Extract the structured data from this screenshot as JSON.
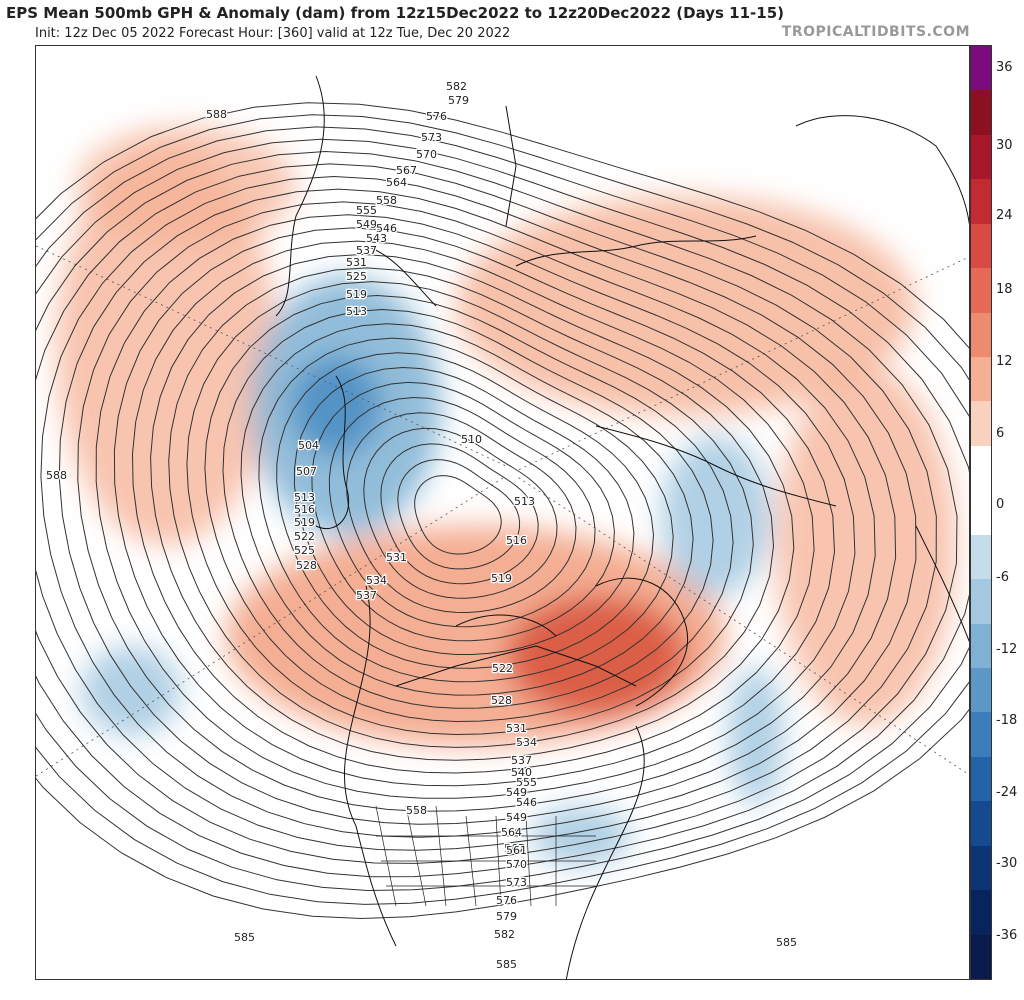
{
  "header": {
    "title": "EPS Mean 500mb GPH & Anomaly (dam) from 12z15Dec2022 to 12z20Dec2022 (Days 11-15)",
    "subtitle": "Init: 12z Dec 05 2022   Forecast Hour: [360]   valid at 12z Tue, Dec 20 2022",
    "brand": "TROPICALTIDBITS.COM"
  },
  "colorbar": {
    "labels": [
      "36",
      "30",
      "24",
      "18",
      "12",
      "6",
      "0",
      "-6",
      "-12",
      "-18",
      "-24",
      "-30",
      "-36"
    ],
    "colors": [
      "#7b0c7e",
      "#8c1022",
      "#a8182a",
      "#c32a32",
      "#d94a44",
      "#e66a55",
      "#ee8a70",
      "#f5b094",
      "#f9d2bf",
      "#ffffff",
      "#ffffff",
      "#c5dceb",
      "#a3c8e0",
      "#7fb1d4",
      "#5d97c7",
      "#3d7eba",
      "#2563a8",
      "#154a90",
      "#0c3576",
      "#07245c",
      "#0a1a4a"
    ]
  },
  "contours": {
    "labels": [
      "588",
      "588",
      "585",
      "585",
      "585",
      "582",
      "582",
      "579",
      "579",
      "576",
      "576",
      "573",
      "573",
      "570",
      "570",
      "567",
      "567",
      "564",
      "564",
      "561",
      "558",
      "558",
      "555",
      "555",
      "549",
      "549",
      "549",
      "546",
      "546",
      "543",
      "540",
      "537",
      "537",
      "537",
      "534",
      "534",
      "531",
      "531",
      "531",
      "528",
      "528",
      "525",
      "525",
      "522",
      "522",
      "519",
      "519",
      "519",
      "516",
      "516",
      "513",
      "513",
      "513",
      "510",
      "507",
      "504"
    ]
  }
}
